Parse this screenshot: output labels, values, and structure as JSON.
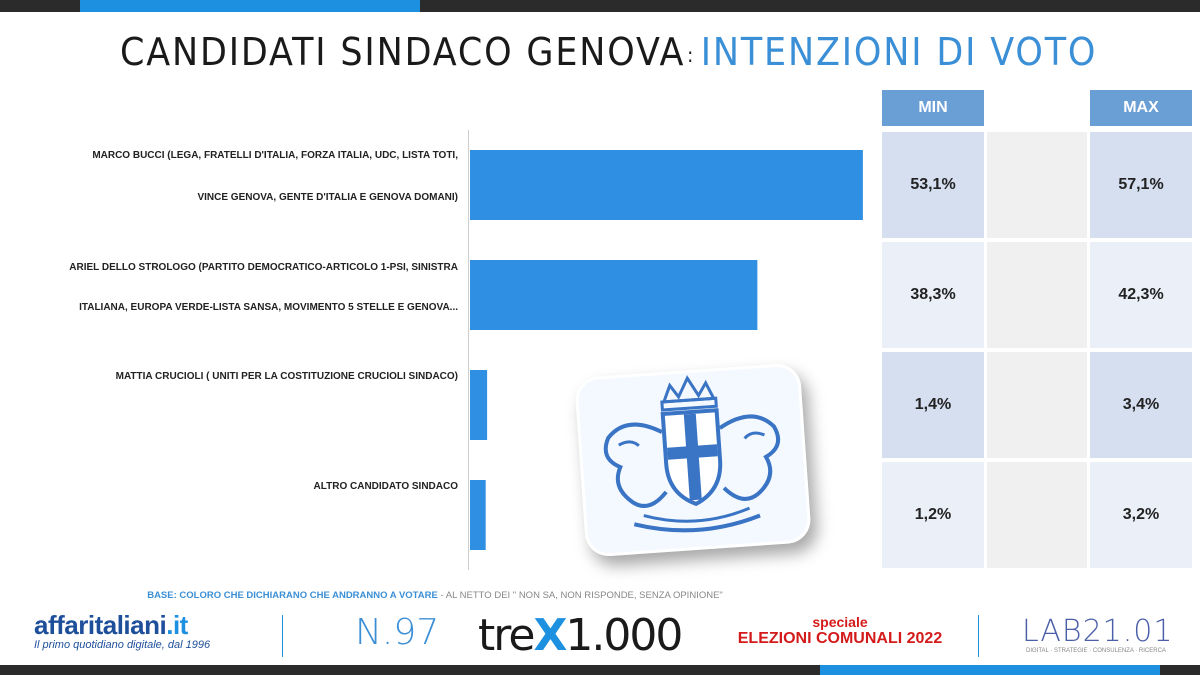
{
  "title": {
    "part1": "CANDIDATI SINDACO GENOVA",
    "colon": ":",
    "part2": "INTENZIONI DI VOTO"
  },
  "table": {
    "min_label": "MIN",
    "max_label": "MAX",
    "rows": [
      {
        "min": "53,1%",
        "max": "57,1%"
      },
      {
        "min": "38,3%",
        "max": "42,3%"
      },
      {
        "min": "1,4%",
        "max": "3,4%"
      },
      {
        "min": "1,2%",
        "max": "3,2%"
      }
    ]
  },
  "chart_data": {
    "type": "bar",
    "orientation": "horizontal",
    "categories": [
      [
        "MARCO BUCCI (LEGA, FRATELLI D'ITALIA, FORZA ITALIA, UDC, LISTA TOTI,",
        "VINCE GENOVA, GENTE D'ITALIA E GENOVA DOMANI)"
      ],
      [
        "ARIEL DELLO STROLOGO (PARTITO DEMOCRATICO-ARTICOLO 1-PSI, SINISTRA",
        "ITALIANA, EUROPA VERDE-LISTA SANSA, MOVIMENTO 5 STELLE E GENOVA..."
      ],
      [
        "MATTIA CRUCIOLI ( UNITI PER LA COSTITUZIONE CRUCIOLI SINDACO)"
      ],
      [
        "ALTRO CANDIDATO SINDACO"
      ]
    ],
    "values": [
      55.1,
      40.3,
      2.4,
      2.2
    ],
    "xlim": [
      0,
      57.5
    ],
    "grid": false,
    "bar_color": "#2f8fe3"
  },
  "footer": {
    "base_blue": "BASE: COLORO CHE DICHIARANO CHE ANDRANNO A VOTARE",
    "base_grey": " - AL NETTO DEI \" NON SA, NON RISPONDE, SENZA OPINIONE\"",
    "aff_name": "affaritaliani",
    "aff_tld": ".it",
    "aff_sub": "Il primo quotidiano digitale, dal 1996",
    "number": "N.97",
    "trex_a": "tre",
    "trex_x": "X",
    "trex_b": "1.000",
    "speciale": "speciale",
    "elezioni": "ELEZIONI COMUNALI 2022",
    "lab": "LAB21.01",
    "lab_sub": "DIGITAL · STRATEGIE · CONSULENZA · RICERCA"
  }
}
